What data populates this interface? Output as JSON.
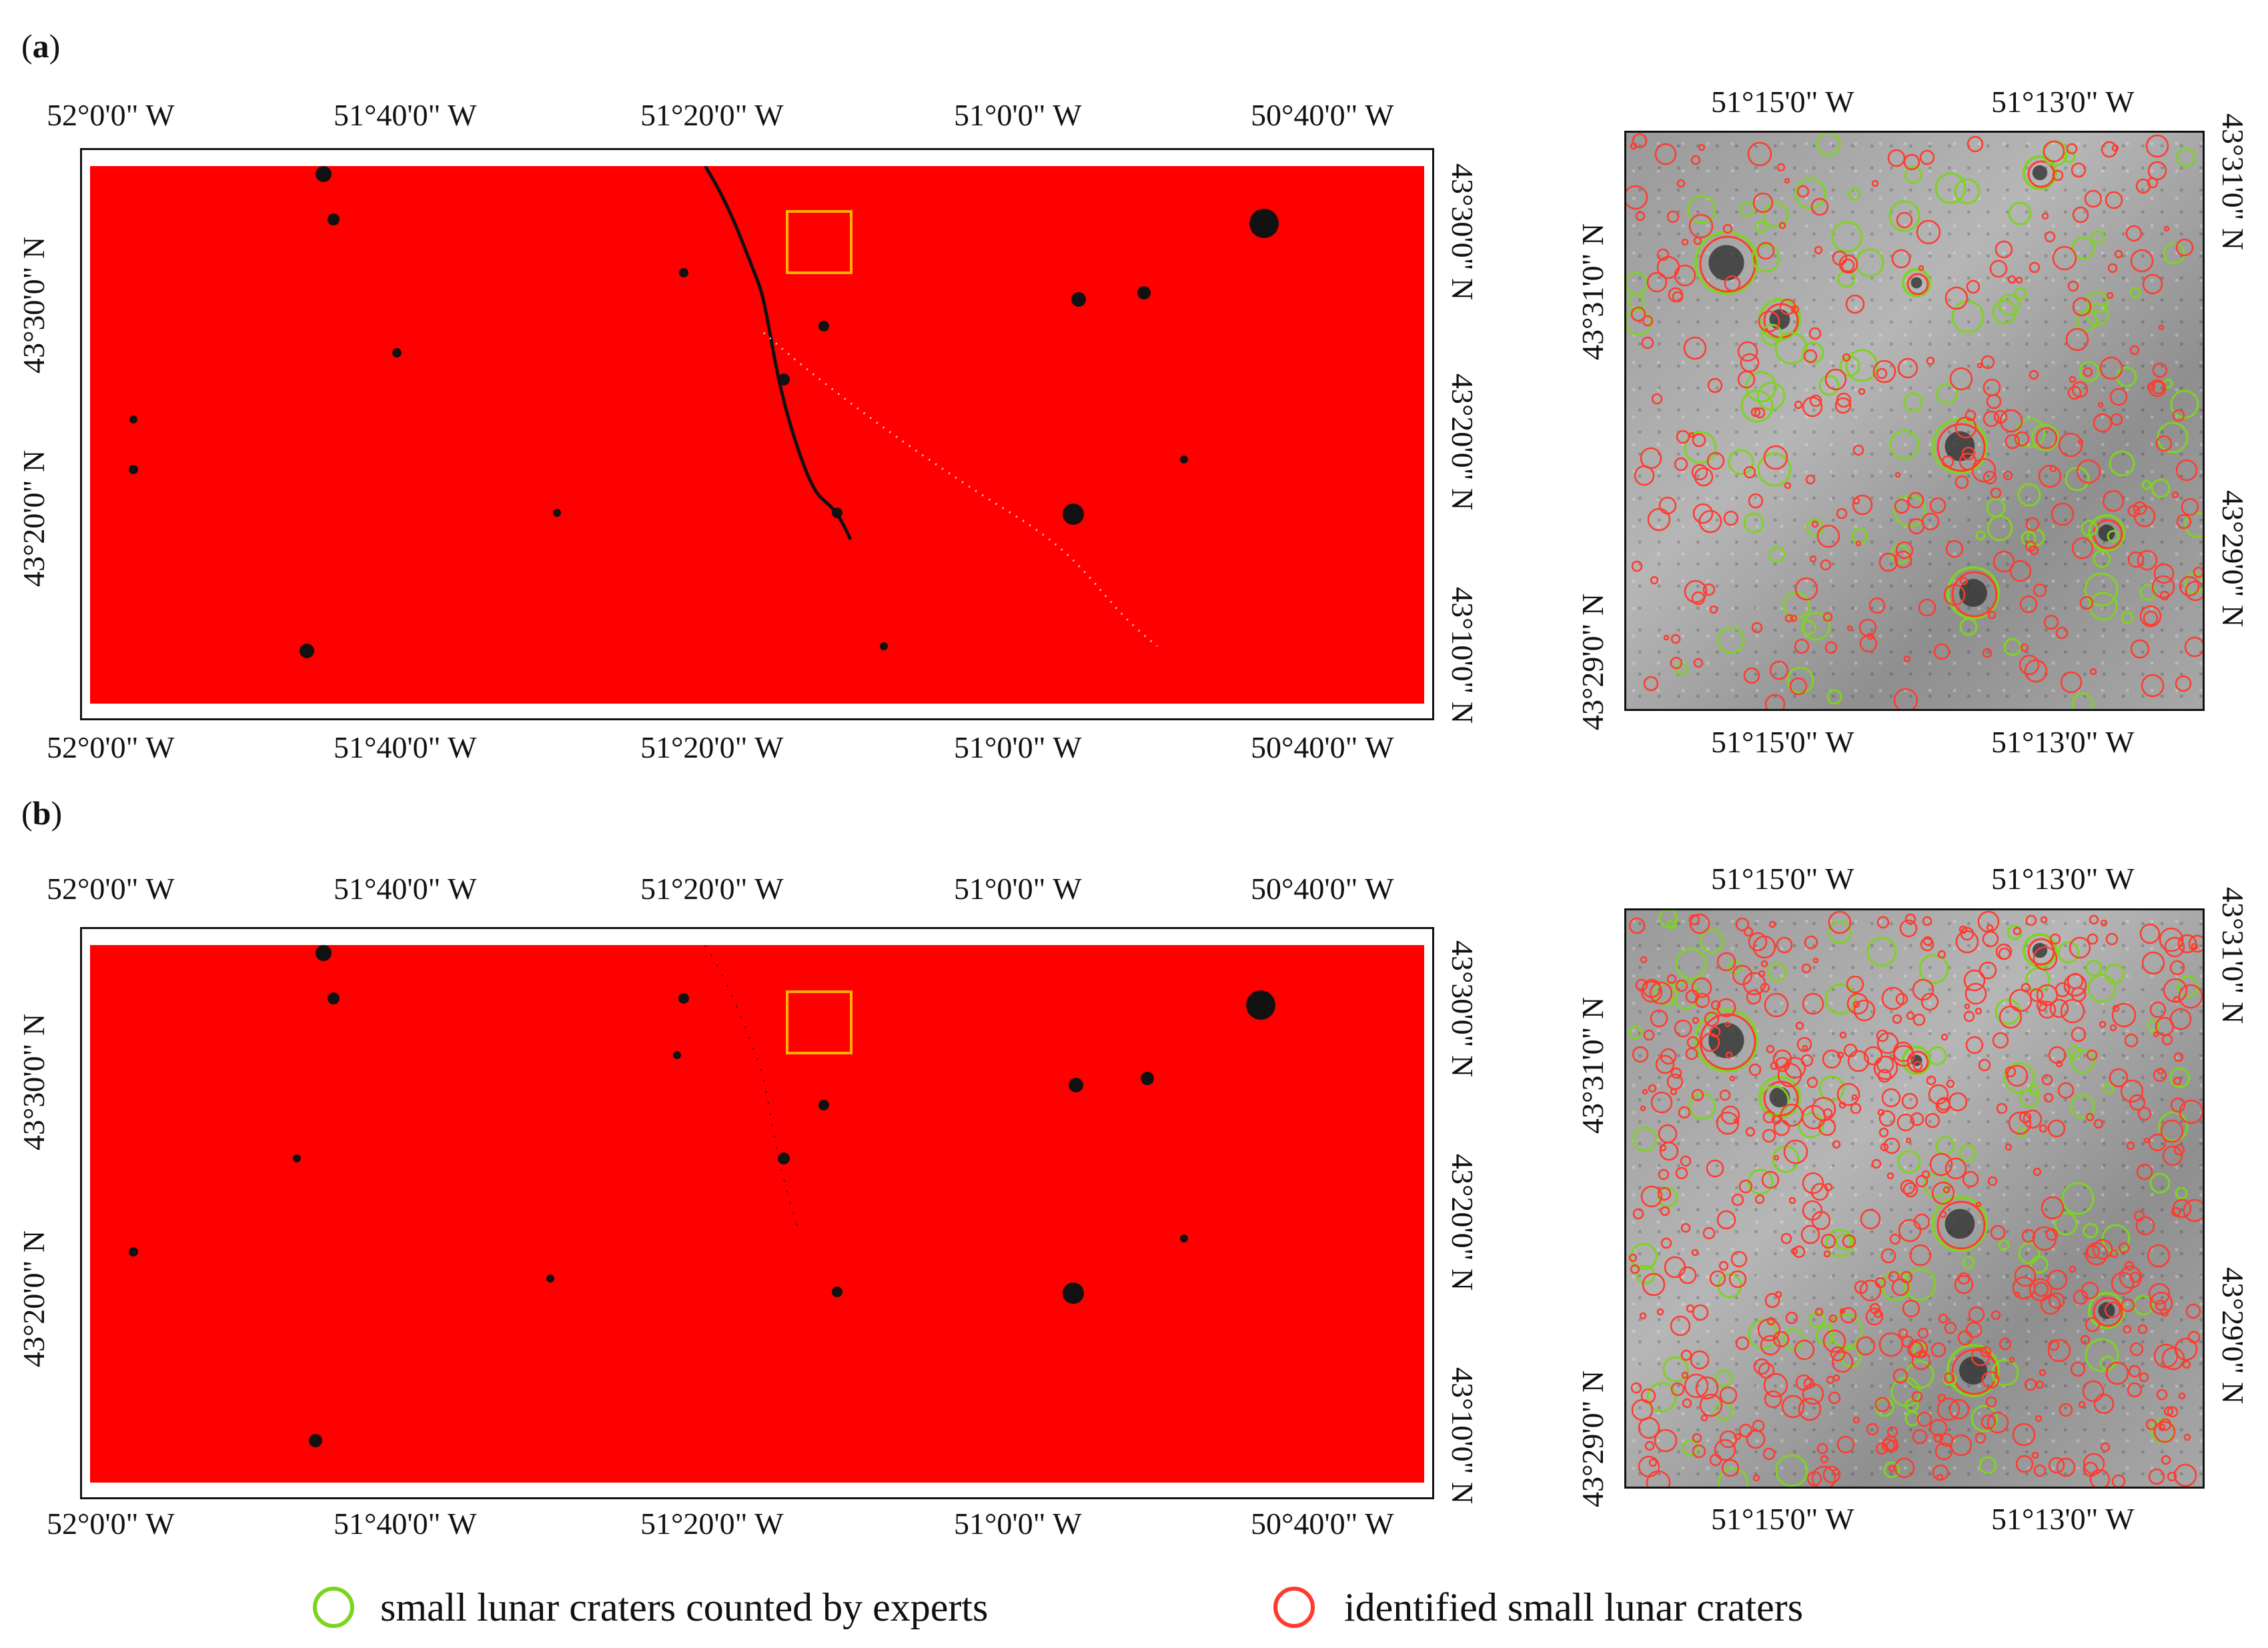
{
  "panels": [
    {
      "label": "a",
      "wide_map": {
        "lon_labels": [
          "52°0'0\" W",
          "51°40'0\" W",
          "51°20'0\" W",
          "51°0'0\" W",
          "50°40'0\" W"
        ],
        "lat_labels_left": [
          "43°30'0\" N",
          "43°20'0\" N"
        ],
        "lat_labels_right": [
          "43°30'0\" N",
          "43°20'0\" N",
          "43°10'0\" N"
        ],
        "fill_color": "#ff0000",
        "study_area_color": "#ffb000"
      },
      "zoom_map": {
        "lon_labels": [
          "51°15'0\" W",
          "51°13'0\" W"
        ],
        "lat_labels_left": [
          "43°31'0\" N",
          "43°29'0\" N"
        ],
        "lat_labels_right": [
          "43°31'0\" N",
          "43°29'0\" N"
        ]
      }
    },
    {
      "label": "b",
      "wide_map": {
        "lon_labels": [
          "52°0'0\" W",
          "51°40'0\" W",
          "51°20'0\" W",
          "51°0'0\" W",
          "50°40'0\" W"
        ],
        "lat_labels_left": [
          "43°30'0\" N",
          "43°20'0\" N"
        ],
        "lat_labels_right": [
          "43°30'0\" N",
          "43°20'0\" N",
          "43°10'0\" N"
        ],
        "fill_color": "#ff0000",
        "study_area_color": "#ffb000"
      },
      "zoom_map": {
        "lon_labels": [
          "51°15'0\" W",
          "51°13'0\" W"
        ],
        "lat_labels_left": [
          "43°31'0\" N",
          "43°29'0\" N"
        ],
        "lat_labels_right": [
          "43°31'0\" N",
          "43°29'0\" N"
        ]
      }
    }
  ],
  "legend": {
    "expert": {
      "label": "small lunar craters counted by experts",
      "color": "#7ed321"
    },
    "identified": {
      "label": "identified small lunar craters",
      "color": "#ff3b2f"
    }
  }
}
